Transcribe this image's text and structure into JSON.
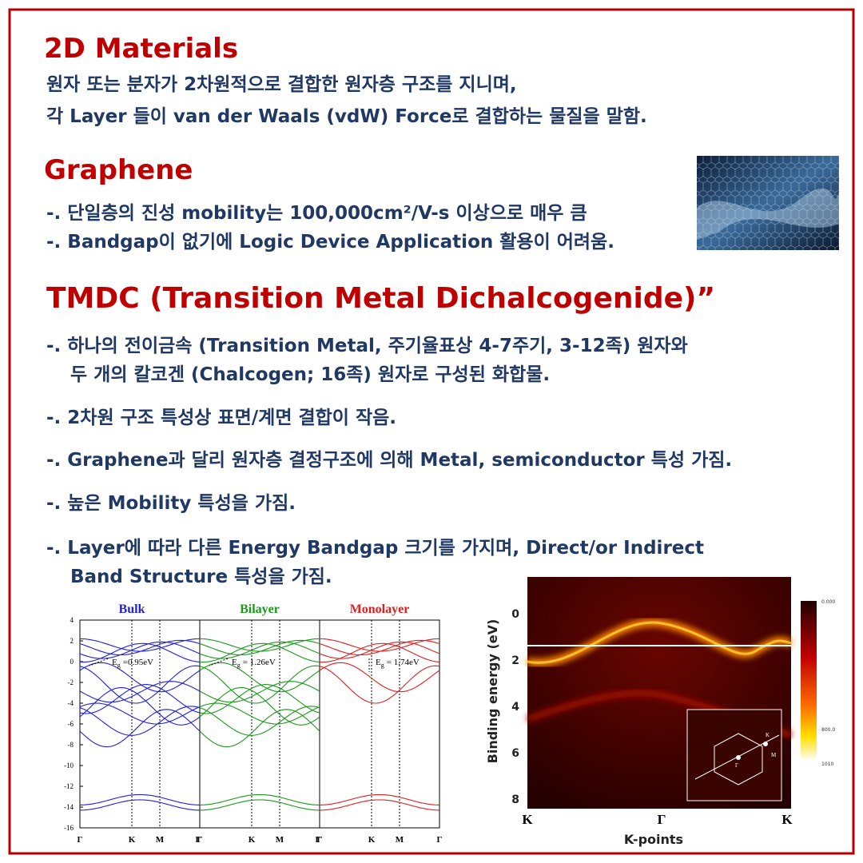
{
  "intro": {
    "title": "2D Materials",
    "lines": [
      "원자 또는 분자가 2차원적으로 결합한 원자층 구조를 지니며,",
      "각 Layer 들이 van der Waals (vdW) Force로 결합하는 물질을 말함."
    ]
  },
  "graphene": {
    "title": "Graphene",
    "items": [
      "-. 단일층의 진성 mobility는 100,000cm²/V-s 이상으로 매우 큼",
      "-. Bandgap이 없기에 Logic Device Application 활용이 어려움."
    ]
  },
  "tmdc": {
    "title": "TMDC (Transition Metal Dichalcogenide)”",
    "items": [
      [
        "-. 하나의 전이금속 (Transition Metal, 주기율표상 4-7주기, 3-12족) 원자와",
        "두 개의 칼코겐 (Chalcogen; 16족) 원자로 구성된 화합물."
      ],
      [
        "-. 2차원 구조 특성상 표면/계면 결합이 작음."
      ],
      [
        "-. Graphene과 달리 원자층 결정구조에 의해 Metal, semiconductor 특성 가짐."
      ],
      [
        "-. 높은 Mobility 특성을 가짐."
      ],
      [
        "-. Layer에 따라 다른 Energy Bandgap 크기를 가지며, Direct/or Indirect",
        "Band Structure 특성을 가짐."
      ]
    ]
  },
  "band_figure": {
    "panels": [
      {
        "title": "Bulk",
        "color": "#2020dd",
        "gap": {
          "symbol": "E",
          "sub": "g",
          "rest": "=0.95eV"
        }
      },
      {
        "title": "Bilayer",
        "color": "#1a9a1a",
        "gap": {
          "symbol": "E",
          "sub": "g",
          "rest": "= 1.26eV"
        }
      },
      {
        "title": "Monolayer",
        "color": "#e02020",
        "gap": {
          "symbol": "E",
          "sub": "g",
          "rest": "= 1.74eV"
        }
      }
    ],
    "yticks": [
      "4",
      "2",
      "0",
      "-2",
      "-4",
      "-6",
      "-8",
      "-10",
      "-12",
      "-14",
      "-16"
    ],
    "kpoints": [
      "Γ",
      "K",
      "M",
      "Γ"
    ]
  },
  "arpes_figure": {
    "ylabel": "Binding energy (eV)",
    "xlabel": "K-points",
    "yticks": [
      "0",
      "2",
      "4",
      "6",
      "8"
    ],
    "xticks": [
      "K",
      "Γ",
      "K"
    ],
    "colorbar": [
      "0.000",
      "800.0",
      "1010"
    ],
    "inset_labels": [
      "K",
      "M",
      "Γ"
    ]
  }
}
